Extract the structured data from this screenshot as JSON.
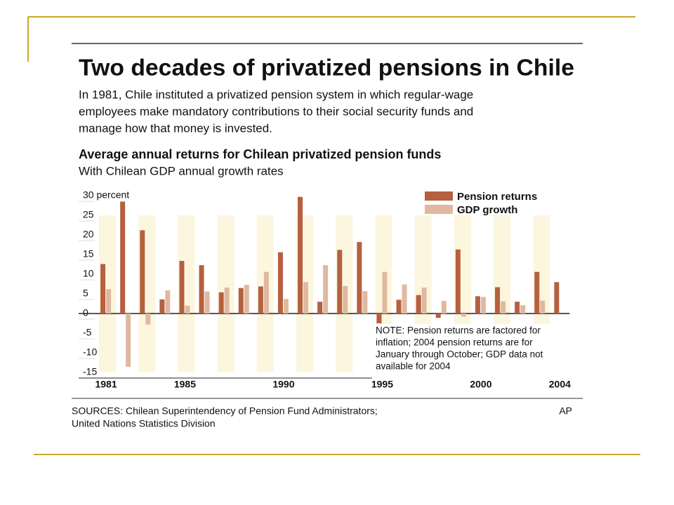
{
  "title": "Two decades of privatized pensions in Chile",
  "intro": [
    "In 1981, Chile instituted a privatized pension system in which regular-wage",
    "employees make mandatory contributions to their social security funds and",
    "manage how that money is invested."
  ],
  "sources": [
    "SOURCES: Chilean Superintendency of Pension Fund Administrators;",
    "United Nations Statistics Division"
  ],
  "credit": "AP",
  "chart_data": {
    "type": "bar",
    "title": "Average annual returns for Chilean privatized pension funds",
    "subtitle": "With Chilean GDP annual growth rates",
    "note": [
      "NOTE: Pension returns are factored for",
      "inflation; 2004 pension returns are for",
      "January through October; GDP data not",
      "available for 2004"
    ],
    "categories": [
      "1981",
      null,
      null,
      null,
      "1985",
      null,
      null,
      null,
      null,
      "1990",
      null,
      null,
      null,
      null,
      "1995",
      null,
      null,
      null,
      null,
      "2000",
      null,
      null,
      null,
      "2004"
    ],
    "series": [
      {
        "name": "Pension returns",
        "color": "#b5603f",
        "values": [
          12.6,
          28.5,
          21.2,
          3.6,
          13.4,
          12.3,
          5.4,
          6.5,
          6.9,
          15.6,
          29.7,
          3.0,
          16.2,
          18.2,
          -2.5,
          3.5,
          4.7,
          -1.1,
          16.3,
          4.4,
          6.7,
          3.0,
          10.6,
          8.0
        ]
      },
      {
        "name": "GDP growth",
        "color": "#e0b8a0",
        "values": [
          6.2,
          -13.6,
          -2.8,
          5.9,
          2.0,
          5.6,
          6.6,
          7.3,
          10.6,
          3.7,
          8.0,
          12.3,
          7.0,
          5.7,
          10.6,
          7.4,
          6.6,
          3.2,
          -0.8,
          4.2,
          3.1,
          2.1,
          3.3,
          null
        ]
      }
    ],
    "ylim": [
      -15,
      30
    ],
    "yticks": [
      -15,
      -10,
      -5,
      0,
      5,
      10,
      15,
      20,
      25,
      {
        "value": 30,
        "label": "30 percent"
      }
    ],
    "legend": "top-right"
  }
}
